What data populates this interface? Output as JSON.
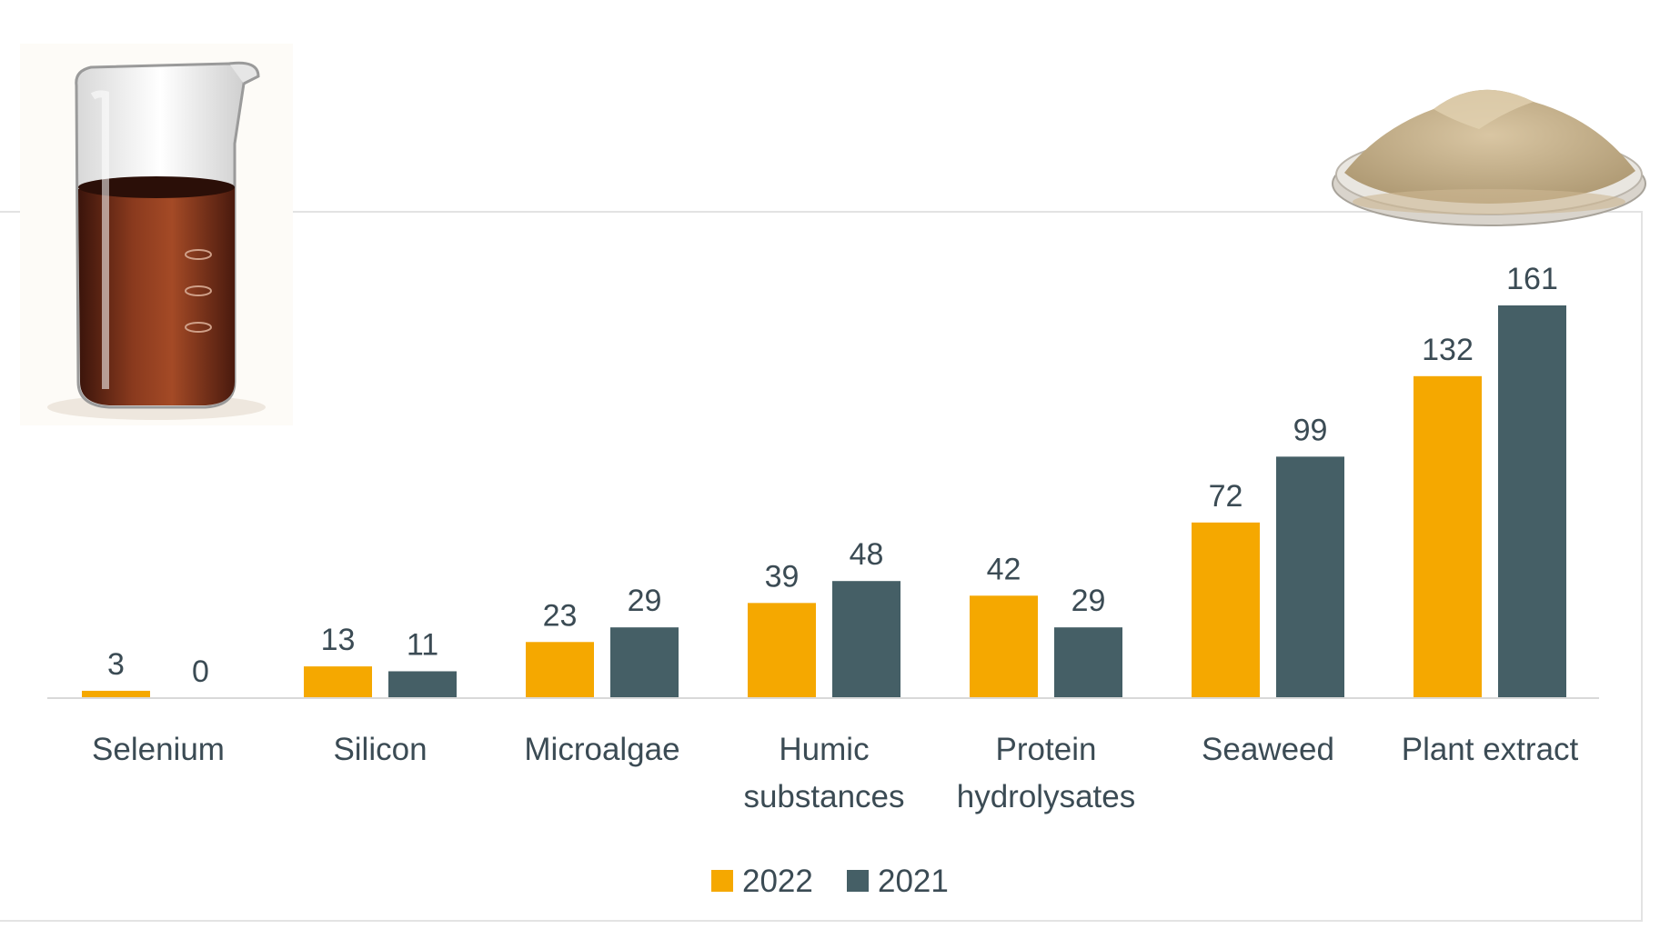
{
  "colors": {
    "series_2022": "#F5A800",
    "series_2021": "#455F66",
    "text": "#3B4B54",
    "axis": "#D9D9D9"
  },
  "images": {
    "left": "beaker-of-amber-liquid",
    "right": "petri-dish-of-tan-powder"
  },
  "chart_data": {
    "type": "bar",
    "categories": [
      [
        "Selenium"
      ],
      [
        "Silicon"
      ],
      [
        "Microalgae"
      ],
      [
        "Humic",
        "substances"
      ],
      [
        "Protein",
        "hydrolysates"
      ],
      [
        "Seaweed"
      ],
      [
        "Plant extract"
      ]
    ],
    "series": [
      {
        "name": "2022",
        "values": [
          3,
          13,
          23,
          39,
          42,
          72,
          132
        ],
        "labels": [
          "3",
          "13",
          "23",
          "39",
          "42",
          "72",
          "132"
        ]
      },
      {
        "name": "2021",
        "values": [
          0,
          11,
          29,
          48,
          29,
          99,
          161
        ],
        "labels": [
          "0",
          "11",
          "29",
          "48",
          "29",
          "99",
          "161"
        ]
      }
    ],
    "title": "",
    "xlabel": "",
    "ylabel": "",
    "ylim": [
      0,
      161
    ],
    "grid": false,
    "legend_position": "bottom"
  }
}
